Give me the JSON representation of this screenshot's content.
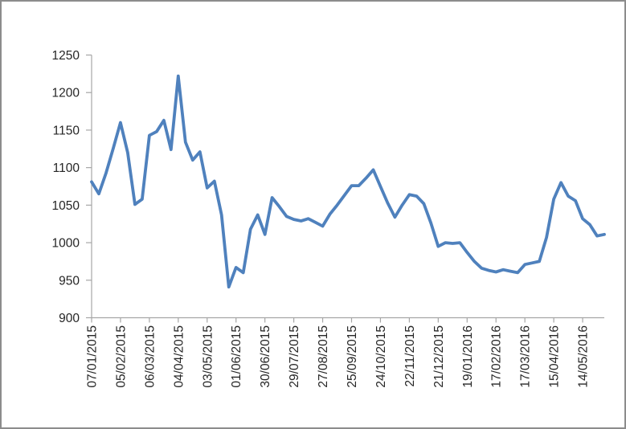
{
  "chart_data": {
    "type": "line",
    "title": "",
    "xlabel": "",
    "ylabel": "",
    "legend": "none",
    "grid": "off",
    "x_tick_labels": [
      "07/01/2015",
      "05/02/2015",
      "06/03/2015",
      "04/04/2015",
      "03/05/2015",
      "01/06/2015",
      "30/06/2015",
      "29/07/2015",
      "27/08/2015",
      "25/09/2015",
      "24/10/2015",
      "22/11/2015",
      "21/12/2015",
      "19/01/2016",
      "17/02/2016",
      "17/03/2016",
      "15/04/2016",
      "14/05/2016"
    ],
    "points_per_label": 4,
    "values": [
      1081,
      1065,
      1093,
      1126,
      1160,
      1120,
      1051,
      1058,
      1143,
      1148,
      1163,
      1124,
      1222,
      1134,
      1110,
      1121,
      1073,
      1082,
      1037,
      941,
      967,
      960,
      1018,
      1037,
      1011,
      1060,
      1048,
      1035,
      1031,
      1029,
      1032,
      1027,
      1022,
      1038,
      1050,
      1063,
      1076,
      1076,
      1086,
      1097,
      1075,
      1053,
      1034,
      1050,
      1064,
      1062,
      1052,
      1026,
      995,
      1000,
      999,
      1000,
      987,
      975,
      966,
      963,
      961,
      964,
      962,
      960,
      971,
      973,
      975,
      1007,
      1058,
      1080,
      1062,
      1056,
      1032,
      1024,
      1009,
      1011
    ],
    "y_tick_labels": [
      900,
      950,
      1000,
      1050,
      1100,
      1150,
      1200,
      1250
    ],
    "ylim": [
      900,
      1250
    ],
    "series_color": "#4f81bd",
    "axis_color": "#a6a6a6",
    "text_color": "#262626",
    "background": "#ffffff",
    "frame_border_color": "#8c8c8c"
  }
}
